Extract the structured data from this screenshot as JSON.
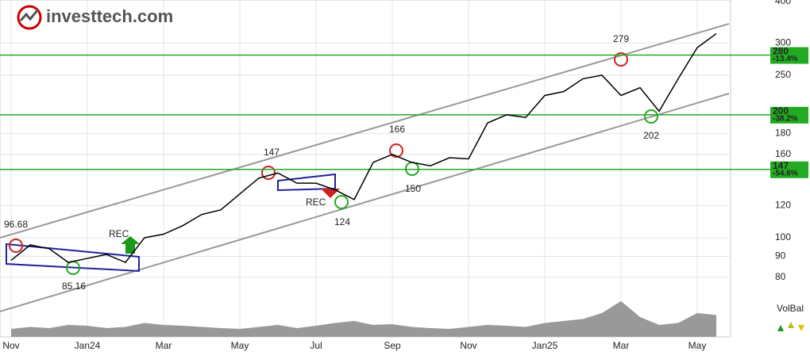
{
  "header": {
    "logo": "investtech.com"
  },
  "chart_data": {
    "type": "line",
    "log_scale": true,
    "categories": [
      "Nov",
      null,
      null,
      null,
      "Jan24",
      null,
      null,
      null,
      "Mar",
      null,
      null,
      null,
      "May",
      null,
      null,
      null,
      "Jul",
      null,
      null,
      null,
      "Sep",
      null,
      null,
      null,
      "Nov",
      null,
      null,
      null,
      "Jan25",
      null,
      null,
      null,
      "Mar",
      null,
      null,
      null,
      "May",
      null
    ],
    "series": [
      {
        "name": "Price",
        "color": "#000000",
        "values": [
          88,
          96,
          94,
          87,
          89,
          91,
          87,
          100,
          102,
          107,
          114,
          117,
          128,
          140,
          144,
          136,
          136,
          131,
          124,
          153,
          160,
          153,
          150,
          157,
          156,
          191,
          200,
          197,
          223,
          228,
          245,
          250,
          223,
          233,
          204,
          245,
          292,
          316
        ]
      }
    ],
    "ylim": [
      57.2,
      382
    ],
    "yticks": [
      80,
      90,
      100,
      120,
      160,
      180,
      250,
      300,
      400
    ],
    "grid": true,
    "levels": [
      {
        "value": 280,
        "label": "280",
        "change": "-13.4%"
      },
      {
        "value": 200,
        "label": "200",
        "change": "-38.2%"
      },
      {
        "value": 147,
        "label": "147",
        "change": "-54.6%"
      }
    ],
    "level_color": "#22aa22",
    "annotations": [
      "96.68",
      "85.16",
      "REC",
      "147",
      "REC",
      "124",
      "166",
      "150",
      "279",
      "202"
    ],
    "volbal": {
      "label": "VolBal",
      "color": "#999999",
      "vlim": [
        0,
        100
      ],
      "values": [
        20,
        25,
        22,
        30,
        28,
        22,
        25,
        35,
        30,
        28,
        25,
        22,
        20,
        25,
        30,
        22,
        28,
        35,
        40,
        30,
        32,
        25,
        22,
        20,
        25,
        30,
        28,
        25,
        35,
        40,
        45,
        60,
        90,
        50,
        30,
        35,
        60,
        55
      ]
    }
  }
}
